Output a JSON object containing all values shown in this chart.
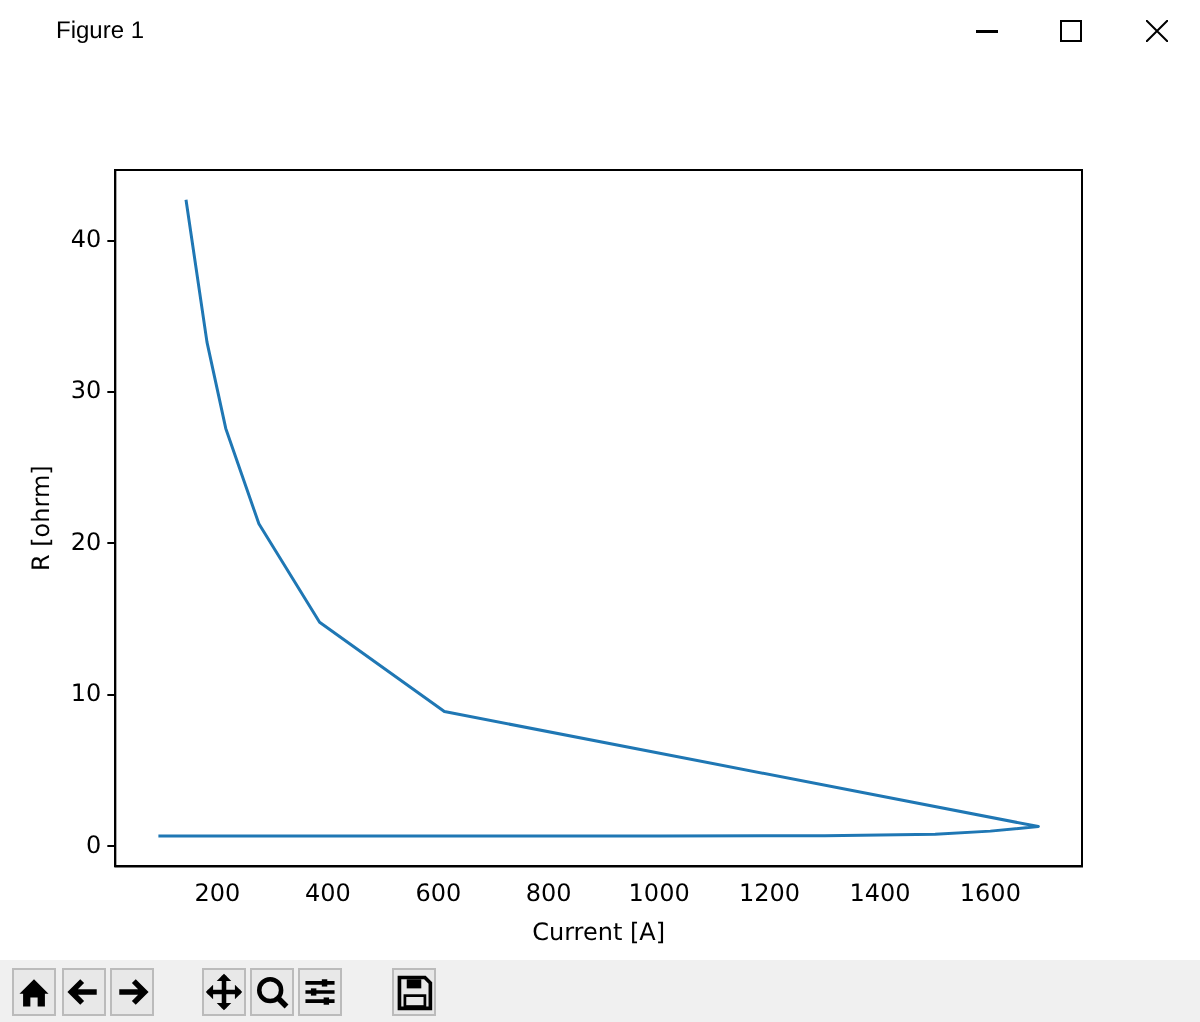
{
  "chart_data": {
    "type": "line",
    "title": "Figure 1",
    "xlabel": "Current [A]",
    "ylabel": "R [ohrm]",
    "x": [
      143,
      181,
      215,
      275,
      385,
      611,
      1687,
      1600,
      1500,
      1300,
      1000,
      93
    ],
    "series": [
      {
        "color": "#1f77b4",
        "values": [
          42.7,
          33.3,
          27.6,
          21.3,
          14.8,
          8.9,
          1.3,
          1.0,
          0.8,
          0.7,
          0.67,
          0.67
        ]
      }
    ],
    "xlim": [
      15,
      1766
    ],
    "ylim": [
      -1.33,
      44.67
    ],
    "xticks": [
      200,
      400,
      600,
      800,
      1000,
      1200,
      1400,
      1600
    ],
    "yticks": [
      0,
      10,
      20,
      30,
      40
    ],
    "marker": "none",
    "line_style": "solid"
  }
}
